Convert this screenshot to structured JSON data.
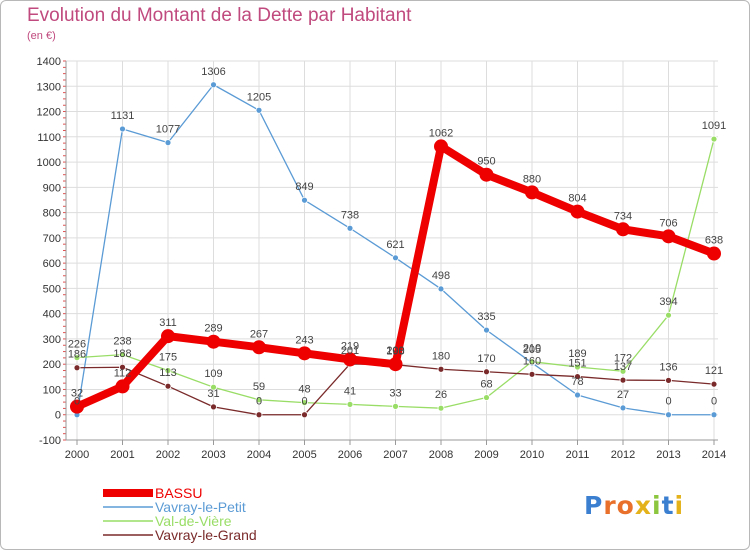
{
  "title": "Evolution du Montant de la Dette par Habitant",
  "unit": "(en €)",
  "logo": "Proxiti",
  "chart_data": {
    "type": "line",
    "x": [
      "2000",
      "2001",
      "2002",
      "2003",
      "2004",
      "2005",
      "2006",
      "2007",
      "2008",
      "2009",
      "2010",
      "2011",
      "2012",
      "2013",
      "2014"
    ],
    "ylim": [
      -100,
      1400
    ],
    "yticks": [
      -100,
      0,
      100,
      200,
      300,
      400,
      500,
      600,
      700,
      800,
      900,
      1000,
      1100,
      1200,
      1300,
      1400
    ],
    "grid": true,
    "legend_position": "bottom-left",
    "series": [
      {
        "name": "BASSU",
        "color": "#ee0000",
        "values": [
          32,
          112,
          311,
          289,
          267,
          243,
          219,
          200,
          1062,
          950,
          880,
          804,
          734,
          706,
          638
        ]
      },
      {
        "name": "Vavray-le-Petit",
        "color": "#5b9bd5",
        "values": [
          0,
          1131,
          1077,
          1306,
          1205,
          849,
          738,
          621,
          498,
          335,
          205,
          78,
          27,
          0,
          0
        ]
      },
      {
        "name": "Val-de-Vière",
        "color": "#99dd66",
        "values": [
          226,
          238,
          175,
          109,
          59,
          48,
          41,
          33,
          26,
          68,
          210,
          189,
          172,
          394,
          1091
        ]
      },
      {
        "name": "Vavray-le-Grand",
        "color": "#7a2a2a",
        "values": [
          186,
          188,
          113,
          31,
          0,
          0,
          201,
          198,
          180,
          170,
          160,
          151,
          137,
          136,
          121
        ]
      }
    ]
  }
}
